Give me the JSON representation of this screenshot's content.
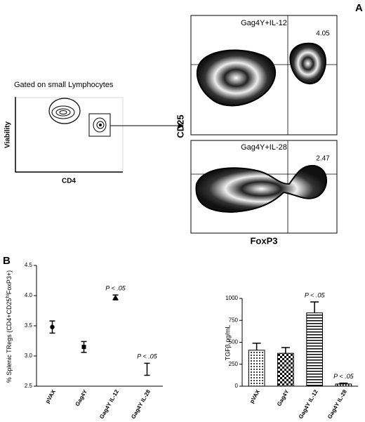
{
  "panel_a": {
    "label": "A",
    "gate_title": "Gated on small Lymphocytes",
    "gate_ylabel": "Viability",
    "gate_xlabel": "CD4",
    "plots": [
      {
        "title": "Gag4Y+IL-12",
        "percent": 4.05
      },
      {
        "title": "Gag4Y+IL-28",
        "percent": 2.47
      }
    ],
    "ylabel": "CD25",
    "xlabel": "FoxP3"
  },
  "panel_b": {
    "label": "B"
  },
  "chart_data": [
    {
      "type": "errorpoint",
      "ylabel": "% Splenic TRegs (CD4+CD25",
      "ylabel_sup": "hi",
      "ylabel_end": "FoxP3+)",
      "categories": [
        "pVAX",
        "Gag4Y",
        "Gag4Y IL-12",
        "Gag4Y IL-28"
      ],
      "values": [
        3.48,
        3.15,
        3.97,
        2.78
      ],
      "errors": [
        0.1,
        0.09,
        0.04,
        0.1
      ],
      "markers": [
        "circle",
        "square",
        "triangle",
        "none"
      ],
      "annotations": [
        null,
        null,
        "P < .05",
        "P < .05"
      ],
      "color": "#000000",
      "ylim": [
        2.5,
        4.5
      ],
      "yticks": [
        2.5,
        {
          "value": 3,
          "label": "3.0"
        },
        3.5,
        {
          "value": 4,
          "label": "4.0"
        },
        4.5
      ]
    },
    {
      "type": "bar",
      "ylabel": "TGFβ pg/mL",
      "categories": [
        "pVAX",
        "Gag4Y",
        "Gag4Y IL-12",
        "Gag4Y IL-28"
      ],
      "values": [
        410,
        375,
        835,
        25
      ],
      "errors": [
        80,
        65,
        125,
        10
      ],
      "patterns": [
        "dots",
        "checker",
        "hstripes",
        "vlines"
      ],
      "annotations": [
        null,
        null,
        "P < .05",
        "P < .05"
      ],
      "color": "#000000",
      "ylim": [
        0,
        1000
      ],
      "yticks": [
        0,
        250,
        500,
        750,
        1000
      ]
    }
  ]
}
